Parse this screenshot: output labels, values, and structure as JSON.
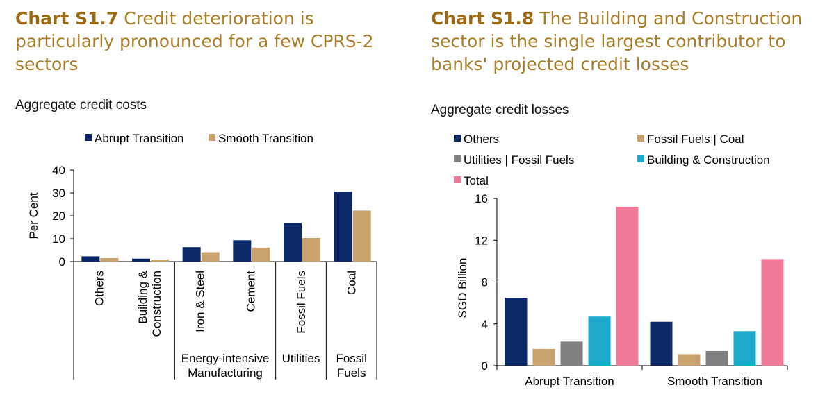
{
  "charts": [
    {
      "label": "Chart S1.7",
      "title": "Credit deterioration is particularly pronounced for a few CPRS-2 sectors",
      "subtitle": "Aggregate credit costs"
    },
    {
      "label": "Chart S1.8",
      "title": "The Building and Construction sector is the single largest contributor to banks' projected credit losses",
      "subtitle": "Aggregate credit losses"
    }
  ],
  "colors": {
    "navy": "#0b2868",
    "tan": "#c9a26d",
    "grey": "#808080",
    "cyan": "#1ea8cc",
    "pink": "#ef7898",
    "title": "#a87d2a"
  },
  "chart_data": [
    {
      "type": "bar",
      "title": "Aggregate credit costs",
      "ylabel": "Per Cent",
      "xlabel": "",
      "ylim": [
        0,
        40
      ],
      "yticks": [
        0,
        10,
        20,
        30,
        40
      ],
      "grid": false,
      "legend_position": "top",
      "categories": [
        "Others",
        "Building & Construction",
        "Iron & Steel",
        "Cement",
        "Fossil Fuels",
        "Coal"
      ],
      "category_lines": [
        [
          "Others"
        ],
        [
          "Building &",
          "Construction"
        ],
        [
          "Iron & Steel"
        ],
        [
          "Cement"
        ],
        [
          "Fossil Fuels"
        ],
        [
          "Coal"
        ]
      ],
      "groups": [
        {
          "lines": [
            "Energy-intensive",
            "Manufacturing"
          ],
          "span": [
            2,
            3
          ]
        },
        {
          "lines": [
            "Utilities"
          ],
          "span": [
            4,
            4
          ]
        },
        {
          "lines": [
            "Fossil",
            "Fuels"
          ],
          "span": [
            5,
            5
          ]
        }
      ],
      "series": [
        {
          "name": "Abrupt Transition",
          "values": [
            2.3,
            1.3,
            6.3,
            9.3,
            16.8,
            30.5
          ]
        },
        {
          "name": "Smooth Transition",
          "values": [
            1.5,
            0.9,
            4.1,
            6.1,
            10.3,
            22.3
          ]
        }
      ]
    },
    {
      "type": "bar",
      "title": "Aggregate credit losses",
      "ylabel": "SGD Billion",
      "xlabel": "",
      "ylim": [
        0,
        16
      ],
      "yticks": [
        0,
        4,
        8,
        12,
        16
      ],
      "grid": false,
      "legend_position": "top-left",
      "categories": [
        "Abrupt Transition",
        "Smooth Transition"
      ],
      "series": [
        {
          "name": "Others",
          "values": [
            6.5,
            4.2
          ]
        },
        {
          "name": "Fossil Fuels | Coal",
          "values": [
            1.6,
            1.1
          ]
        },
        {
          "name": "Utilities | Fossil Fuels",
          "values": [
            2.3,
            1.4
          ]
        },
        {
          "name": "Building & Construction",
          "values": [
            4.7,
            3.3
          ]
        },
        {
          "name": "Total",
          "values": [
            15.2,
            10.2
          ]
        }
      ]
    }
  ]
}
